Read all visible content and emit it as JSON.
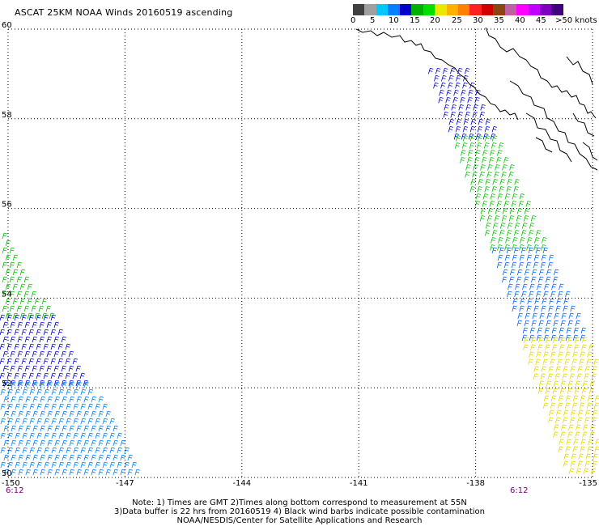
{
  "title": "ASCAT 25KM NOAA Winds 20160519 ascending",
  "scale": {
    "labels": [
      "0",
      "5",
      "10",
      "15",
      "20",
      "25",
      "30",
      "35",
      "40",
      "45",
      ">50 knots"
    ],
    "colors": [
      "#404040",
      "#a0a0a0",
      "#00c8ff",
      "#0080ff",
      "#0000cc",
      "#00b000",
      "#00e000",
      "#e8e800",
      "#ffb000",
      "#ff7f00",
      "#ff2020",
      "#d00000",
      "#8b4513",
      "#c060a0",
      "#ff00ff",
      "#c000ff",
      "#8000c0",
      "#400080"
    ]
  },
  "axes": {
    "lat_ticks": [
      "60",
      "58",
      "56",
      "54",
      "52",
      "50"
    ],
    "lon_ticks": [
      "-150",
      "-147",
      "-144",
      "-141",
      "-138",
      "-135"
    ],
    "lat_range": [
      50,
      60
    ],
    "lon_range": [
      -150,
      -135
    ]
  },
  "time_labels": {
    "left": "6:12",
    "right": "6:12"
  },
  "notes": [
    "Note: 1) Times are GMT 2)Times along bottom correspond to measurement at 55N",
    "3)Data buffer is 22 hrs from 20160519 4) Black wind barbs indicate possible contamination",
    "NOAA/NESDIS/Center for Satellite Applications and Research"
  ],
  "swaths": [
    {
      "name": "west",
      "bands": [
        {
          "lat": [
            53.5,
            55.5
          ],
          "color": "#00c000"
        },
        {
          "lat": [
            52.0,
            53.5
          ],
          "color": "#0000cc"
        },
        {
          "lat": [
            50.0,
            52.0
          ],
          "color": "#0080ff"
        }
      ]
    },
    {
      "name": "east",
      "bands": [
        {
          "lat": [
            57.5,
            59.0
          ],
          "color": "#0000cc"
        },
        {
          "lat": [
            55.0,
            57.5
          ],
          "color": "#00c000"
        },
        {
          "lat": [
            53.0,
            55.0
          ],
          "color": "#0060ff"
        },
        {
          "lat": [
            50.0,
            53.0
          ],
          "color": "#e8d800"
        }
      ]
    }
  ]
}
